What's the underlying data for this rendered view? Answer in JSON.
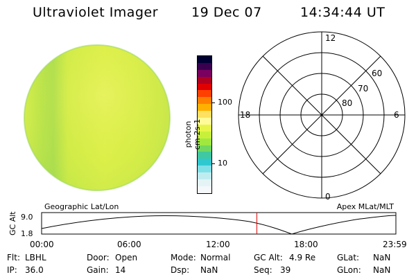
{
  "header": {
    "instrument": "Ultraviolet Imager",
    "date": "19 Dec 07",
    "time": "14:34:44 UT"
  },
  "colorbar": {
    "units": "photon cm-2s-1",
    "tick_labels": [
      "100",
      "10"
    ],
    "colors": [
      "#000033",
      "#3a0050",
      "#7a0060",
      "#b00020",
      "#e00000",
      "#ff4000",
      "#ff8000",
      "#ffb000",
      "#ffe060",
      "#fffb9a",
      "#e7f54a",
      "#c8f03a",
      "#a0e840",
      "#70d860",
      "#40c8a0",
      "#30c8d0",
      "#80e0e8",
      "#c0ecf0",
      "#e4f4f6",
      "#f4f8fa"
    ]
  },
  "polar": {
    "mlt_labels": {
      "top": "12",
      "right": "6",
      "bottom": "0",
      "left": "18"
    },
    "lat_labels": [
      "60",
      "70",
      "80"
    ]
  },
  "timeline": {
    "left_label": "Geographic Lat/Lon",
    "right_label": "Apex MLat/MLT",
    "axis_title": "GC Alt",
    "ymax": "9.0",
    "ymin": "1.8",
    "time_ticks": [
      "00:00",
      "06:00",
      "12:00",
      "18:00",
      "23:59"
    ],
    "current_time_fraction": 0.6075,
    "marker_color": "#e00000"
  },
  "status": {
    "row1": [
      {
        "label": "Flt:",
        "value": "LBHL"
      },
      {
        "label": "Door:",
        "value": "Open"
      },
      {
        "label": "Mode:",
        "value": "Normal"
      },
      {
        "label": "GC Alt:",
        "value": "4.9 Re"
      },
      {
        "label": "GLat:",
        "value": "NaN"
      }
    ],
    "row2": [
      {
        "label": "IP:",
        "value": "36.0"
      },
      {
        "label": "Gain:",
        "value": "14"
      },
      {
        "label": "Dsp:",
        "value": "NaN"
      },
      {
        "label": "Seq:",
        "value": "39"
      },
      {
        "label": "GLon:",
        "value": "NaN"
      }
    ]
  }
}
